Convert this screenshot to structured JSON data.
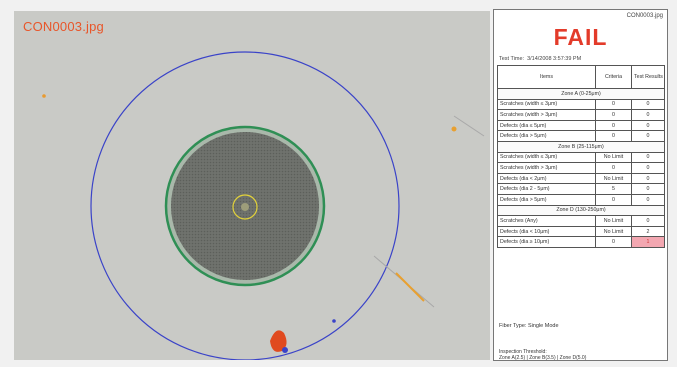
{
  "image": {
    "filename": "CON0003.jpg",
    "colors": {
      "outer_circle": "#3a43c8",
      "cladding_ring": "#2f8f55",
      "core_ring": "#e2d23a",
      "defect": "#e04a1f"
    }
  },
  "panel": {
    "filename": "CON0003.jpg",
    "result": "FAIL",
    "test_time_label": "Test Time:",
    "test_time_value": "3/14/2008 3:57:39 PM",
    "headers": {
      "item": "Items",
      "criteria": "Criteria",
      "result": "Test Results"
    },
    "rows": [
      {
        "type": "zone",
        "label": "Zone A (0-25μm)"
      },
      {
        "label": "Scratches (width ≤ 3μm)",
        "criteria": "0",
        "result": "0"
      },
      {
        "label": "Scratches (width > 3μm)",
        "criteria": "0",
        "result": "0"
      },
      {
        "label": "Defects (dia ≤ 5μm)",
        "criteria": "0",
        "result": "0"
      },
      {
        "label": "Defects (dia > 5μm)",
        "criteria": "0",
        "result": "0"
      },
      {
        "type": "zone",
        "label": "Zone B (25-115μm)"
      },
      {
        "label": "Scratches (width ≤ 3μm)",
        "criteria": "No Limit",
        "result": "0"
      },
      {
        "label": "Scratches (width > 3μm)",
        "criteria": "0",
        "result": "0"
      },
      {
        "label": "Defects (dia < 2μm)",
        "criteria": "No Limit",
        "result": "0"
      },
      {
        "label": "Defects (dia 2 - 5μm)",
        "criteria": "5",
        "result": "0"
      },
      {
        "label": "Defects (dia > 5μm)",
        "criteria": "0",
        "result": "0"
      },
      {
        "type": "zone",
        "label": "Zone D (130-250μm)"
      },
      {
        "label": "Scratches (Any)",
        "criteria": "No Limit",
        "result": "0"
      },
      {
        "label": "Defects (dia < 10μm)",
        "criteria": "No Limit",
        "result": "2"
      },
      {
        "label": "Defects (dia ≥ 10μm)",
        "criteria": "0",
        "result": "1",
        "fail": true
      }
    ],
    "fiber_type": "Fiber Type: Single Mode",
    "threshold_label": "Inspection Threshold:",
    "threshold_values": "Zone A(2.5) | Zone B(3.5) | Zone D(5.0)"
  }
}
